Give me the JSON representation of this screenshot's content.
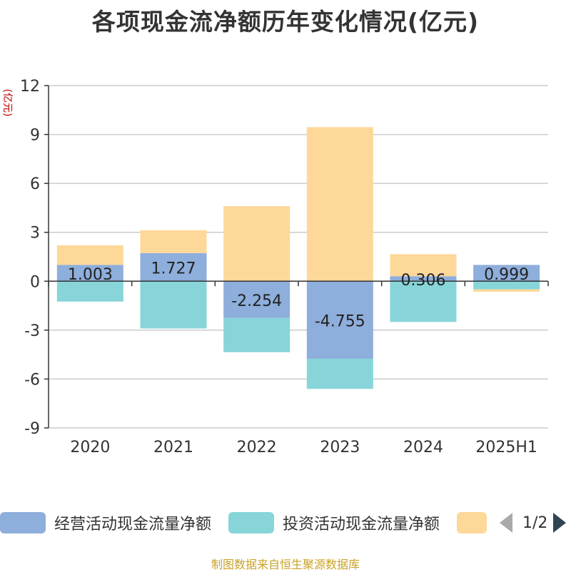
{
  "title": "各项现金流净额历年变化情况(亿元)",
  "y_unit": "(亿元)",
  "source": "制图数据来自恒生聚源数据库",
  "legend": {
    "items": [
      {
        "label": "经营活动现金流量净额",
        "color": "#8eaedb"
      },
      {
        "label": "投资活动现金流量净额",
        "color": "#87d5d8"
      },
      {
        "label": "",
        "color": "#fdd898"
      }
    ],
    "page": "1/2"
  },
  "chart_data": {
    "type": "bar",
    "stacked": true,
    "categories": [
      "2020",
      "2021",
      "2022",
      "2023",
      "2024",
      "2025H1"
    ],
    "ylim": [
      -9,
      12
    ],
    "yticks": [
      12,
      9,
      6,
      3,
      0,
      -3,
      -6,
      -9
    ],
    "grid": true,
    "series": [
      {
        "name": "经营活动现金流量净额",
        "color": "#8eaedb",
        "values": [
          1.003,
          1.727,
          -2.254,
          -4.755,
          0.306,
          0.999
        ],
        "labels": [
          "1.003",
          "1.727",
          "-2.254",
          "-4.755",
          "0.306",
          "0.999"
        ]
      },
      {
        "name": "投资活动现金流量净额",
        "color": "#87d5d8",
        "values": [
          -1.25,
          -2.9,
          -2.1,
          -1.85,
          -2.5,
          -0.5
        ]
      },
      {
        "name": "",
        "color": "#fdd898",
        "values": [
          1.2,
          1.4,
          4.6,
          9.45,
          1.35,
          -0.15
        ]
      }
    ]
  }
}
